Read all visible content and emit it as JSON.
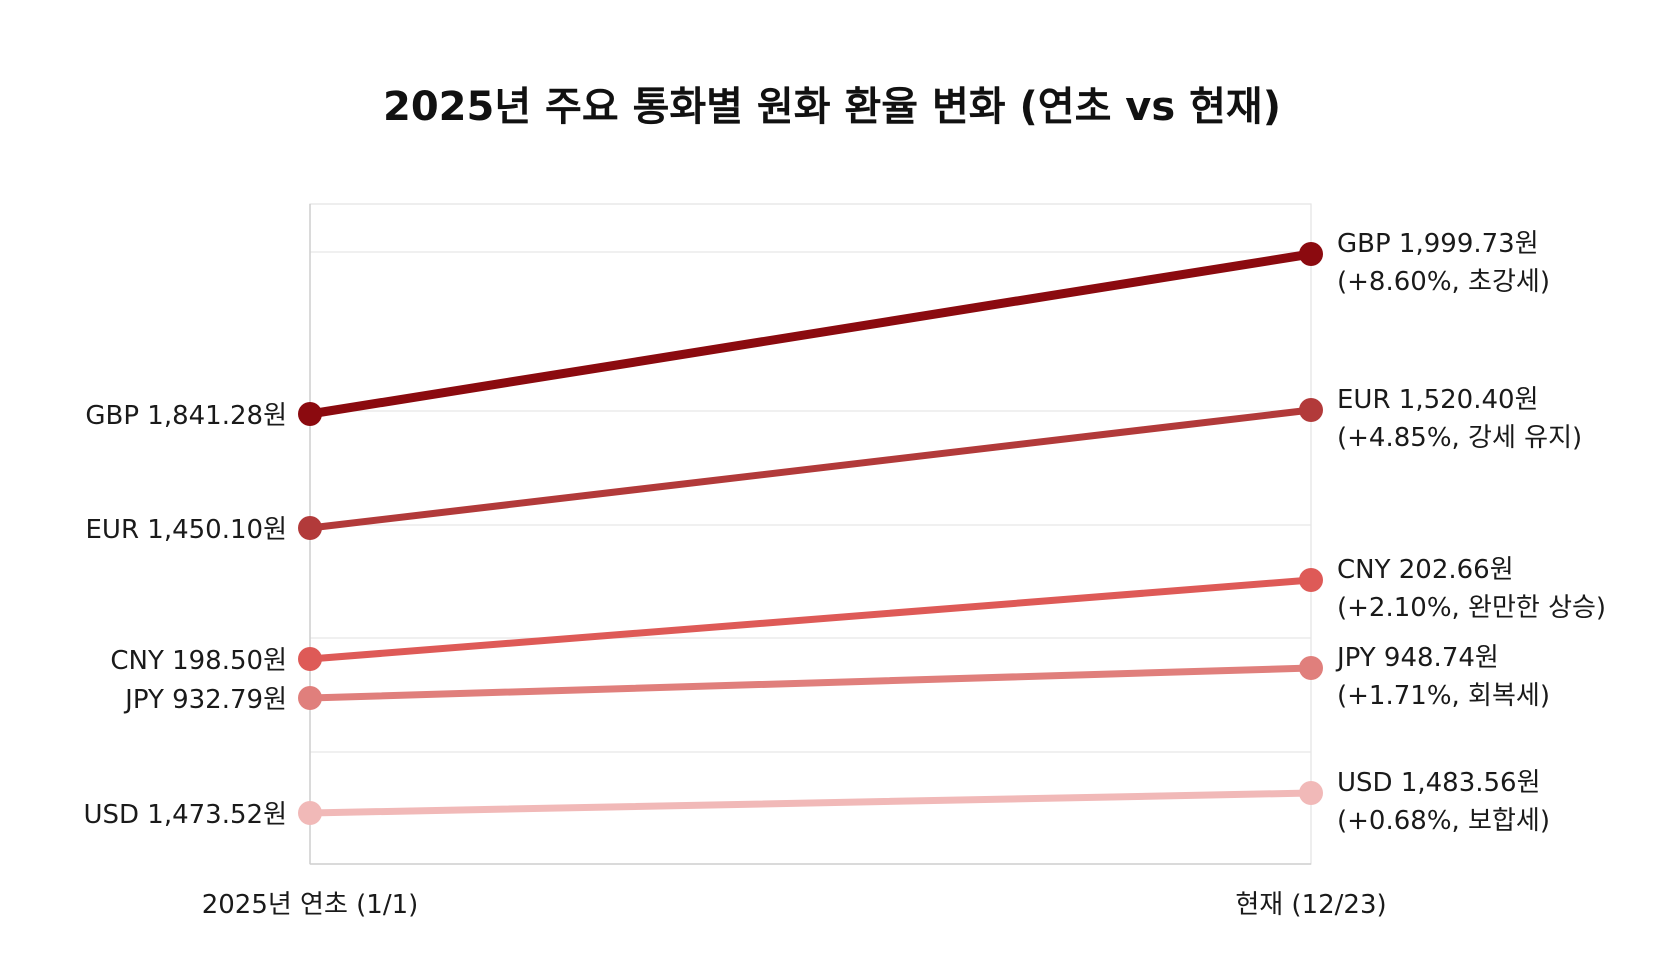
{
  "chart_data": {
    "type": "line",
    "title": "2025년 주요 통화별 원화 환율 변화 (연초 vs 현재)",
    "categories": [
      "2025년 연초 (1/1)",
      "현재 (12/23)"
    ],
    "grid": true,
    "legend": "none",
    "series": [
      {
        "name": "GBP",
        "color": "#8b0a0f",
        "values": [
          1841.28,
          1999.73
        ],
        "start_label": "GBP 1,841.28원",
        "end_label": "GBP 1,999.73원",
        "end_note": "(+8.60%, 초강세)"
      },
      {
        "name": "EUR",
        "color": "#b23a3a",
        "values": [
          1450.1,
          1520.4
        ],
        "start_label": "EUR 1,450.10원",
        "end_label": "EUR 1,520.40원",
        "end_note": "(+4.85%, 강세 유지)"
      },
      {
        "name": "CNY",
        "color": "#de5a57",
        "values": [
          198.5,
          202.66
        ],
        "start_label": "CNY 198.50원",
        "end_label": "CNY 202.66원",
        "end_note": "(+2.10%, 완만한 상승)"
      },
      {
        "name": "JPY",
        "color": "#e07f7c",
        "values": [
          932.79,
          948.74
        ],
        "start_label": "JPY 932.79원",
        "end_label": "JPY 948.74원",
        "end_note": "(+1.71%, 회복세)"
      },
      {
        "name": "USD",
        "color": "#f1b9b8",
        "values": [
          1473.52,
          1483.56
        ],
        "start_label": "USD 1,473.52원",
        "end_label": "USD 1,483.56원",
        "end_note": "(+0.68%, 보합세)"
      }
    ]
  }
}
